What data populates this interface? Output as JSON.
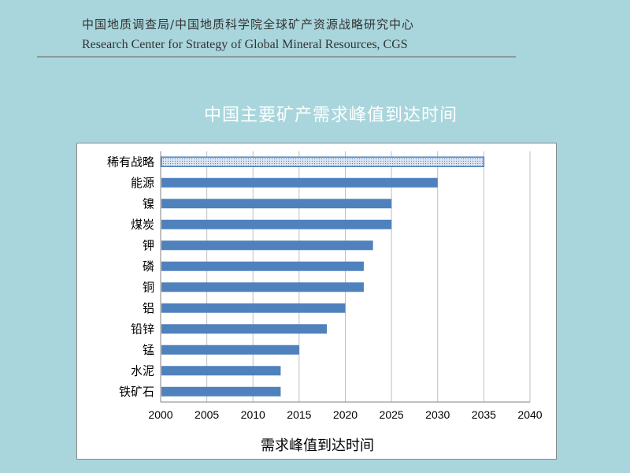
{
  "header": {
    "org_cn": "中国地质调查局/中国地质科学院全球矿产资源战略研究中心",
    "org_en": "Research Center for Strategy of Global Mineral Resources, CGS"
  },
  "chart_data": {
    "type": "bar",
    "orientation": "horizontal",
    "title": "中国主要矿产需求峰值到达时间",
    "xlabel": "需求峰值到达时间",
    "ylabel": "",
    "categories": [
      "稀有战略",
      "能源",
      "镍",
      "煤炭",
      "钾",
      "磷",
      "铜",
      "铝",
      "铅锌",
      "锰",
      "水泥",
      "铁矿石"
    ],
    "values": [
      2035,
      2030,
      2025,
      2025,
      2023,
      2022,
      2022,
      2020,
      2018,
      2015,
      2013,
      2013
    ],
    "xlim": [
      2000,
      2040
    ],
    "xticks": [
      2000,
      2005,
      2010,
      2015,
      2020,
      2025,
      2030,
      2035,
      2040
    ],
    "grid": "vertical",
    "legend": "none",
    "colors": {
      "bar": "#4f81bd",
      "highlight_fill": "#dbe6f3",
      "grid": "#bfbfbf"
    },
    "highlight_category": "稀有战略"
  }
}
